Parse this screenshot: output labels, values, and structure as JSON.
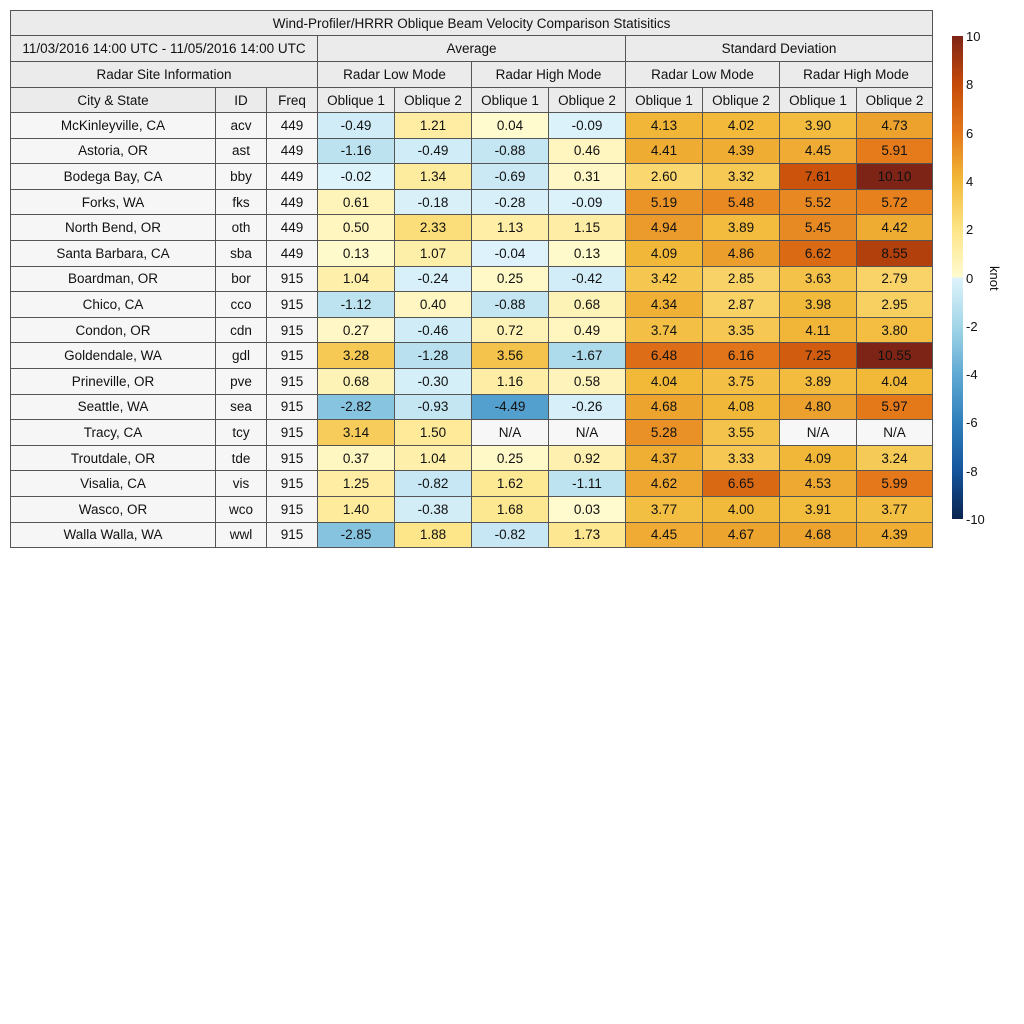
{
  "chart_data": {
    "type": "table",
    "title": "Wind-Profiler/HRRR Oblique Beam Velocity Comparison Statisitics",
    "date_range": "11/03/2016 14:00 UTC - 11/05/2016 14:00 UTC",
    "groups": [
      "Average",
      "Standard Deviation"
    ],
    "site_info_label": "Radar Site Information",
    "modes": [
      "Radar Low Mode",
      "Radar High Mode",
      "Radar Low Mode",
      "Radar High Mode"
    ],
    "columns": [
      "City & State",
      "ID",
      "Freq",
      "Oblique 1",
      "Oblique 2",
      "Oblique 1",
      "Oblique 2",
      "Oblique 1",
      "Oblique 2",
      "Oblique 1",
      "Oblique 2"
    ],
    "rows": [
      {
        "city": "McKinleyville, CA",
        "id": "acv",
        "freq": "449",
        "values": [
          "-0.49",
          "1.21",
          "0.04",
          "-0.09",
          "4.13",
          "4.02",
          "3.90",
          "4.73"
        ]
      },
      {
        "city": "Astoria, OR",
        "id": "ast",
        "freq": "449",
        "values": [
          "-1.16",
          "-0.49",
          "-0.88",
          "0.46",
          "4.41",
          "4.39",
          "4.45",
          "5.91"
        ]
      },
      {
        "city": "Bodega Bay, CA",
        "id": "bby",
        "freq": "449",
        "values": [
          "-0.02",
          "1.34",
          "-0.69",
          "0.31",
          "2.60",
          "3.32",
          "7.61",
          "10.10"
        ]
      },
      {
        "city": "Forks, WA",
        "id": "fks",
        "freq": "449",
        "values": [
          "0.61",
          "-0.18",
          "-0.28",
          "-0.09",
          "5.19",
          "5.48",
          "5.52",
          "5.72"
        ]
      },
      {
        "city": "North Bend, OR",
        "id": "oth",
        "freq": "449",
        "values": [
          "0.50",
          "2.33",
          "1.13",
          "1.15",
          "4.94",
          "3.89",
          "5.45",
          "4.42"
        ]
      },
      {
        "city": "Santa Barbara, CA",
        "id": "sba",
        "freq": "449",
        "values": [
          "0.13",
          "1.07",
          "-0.04",
          "0.13",
          "4.09",
          "4.86",
          "6.62",
          "8.55"
        ]
      },
      {
        "city": "Boardman, OR",
        "id": "bor",
        "freq": "915",
        "values": [
          "1.04",
          "-0.24",
          "0.25",
          "-0.42",
          "3.42",
          "2.85",
          "3.63",
          "2.79"
        ]
      },
      {
        "city": "Chico, CA",
        "id": "cco",
        "freq": "915",
        "values": [
          "-1.12",
          "0.40",
          "-0.88",
          "0.68",
          "4.34",
          "2.87",
          "3.98",
          "2.95"
        ]
      },
      {
        "city": "Condon, OR",
        "id": "cdn",
        "freq": "915",
        "values": [
          "0.27",
          "-0.46",
          "0.72",
          "0.49",
          "3.74",
          "3.35",
          "4.11",
          "3.80"
        ]
      },
      {
        "city": "Goldendale, WA",
        "id": "gdl",
        "freq": "915",
        "values": [
          "3.28",
          "-1.28",
          "3.56",
          "-1.67",
          "6.48",
          "6.16",
          "7.25",
          "10.55"
        ]
      },
      {
        "city": "Prineville, OR",
        "id": "pve",
        "freq": "915",
        "values": [
          "0.68",
          "-0.30",
          "1.16",
          "0.58",
          "4.04",
          "3.75",
          "3.89",
          "4.04"
        ]
      },
      {
        "city": "Seattle, WA",
        "id": "sea",
        "freq": "915",
        "values": [
          "-2.82",
          "-0.93",
          "-4.49",
          "-0.26",
          "4.68",
          "4.08",
          "4.80",
          "5.97"
        ]
      },
      {
        "city": "Tracy, CA",
        "id": "tcy",
        "freq": "915",
        "values": [
          "3.14",
          "1.50",
          "N/A",
          "N/A",
          "5.28",
          "3.55",
          "N/A",
          "N/A"
        ]
      },
      {
        "city": "Troutdale, OR",
        "id": "tde",
        "freq": "915",
        "values": [
          "0.37",
          "1.04",
          "0.25",
          "0.92",
          "4.37",
          "3.33",
          "4.09",
          "3.24"
        ]
      },
      {
        "city": "Visalia, CA",
        "id": "vis",
        "freq": "915",
        "values": [
          "1.25",
          "-0.82",
          "1.62",
          "-1.11",
          "4.62",
          "6.65",
          "4.53",
          "5.99"
        ]
      },
      {
        "city": "Wasco, OR",
        "id": "wco",
        "freq": "915",
        "values": [
          "1.40",
          "-0.38",
          "1.68",
          "0.03",
          "3.77",
          "4.00",
          "3.91",
          "3.77"
        ]
      },
      {
        "city": "Walla Walla, WA",
        "id": "wwl",
        "freq": "915",
        "values": [
          "-2.85",
          "1.88",
          "-0.82",
          "1.73",
          "4.45",
          "4.67",
          "4.68",
          "4.39"
        ]
      }
    ],
    "colorbar": {
      "label": "knot",
      "range": [
        -10,
        10
      ],
      "ticks": [
        "10",
        "8",
        "6",
        "4",
        "2",
        "0",
        "-2",
        "-4",
        "-6",
        "-8",
        "-10"
      ],
      "colors": {
        "-10": "#08234f",
        "-8": "#15559c",
        "-6": "#2f7fbb",
        "-4": "#5fa9d3",
        "-2": "#a3d6e8",
        "0": "#def3fb",
        "0+": "#fffbd0",
        "2": "#fde486",
        "4": "#f2ba3a",
        "6": "#e4781a",
        "8": "#c54a08",
        "10": "#7e2416"
      },
      "na_color": "#f7f7f7"
    }
  }
}
